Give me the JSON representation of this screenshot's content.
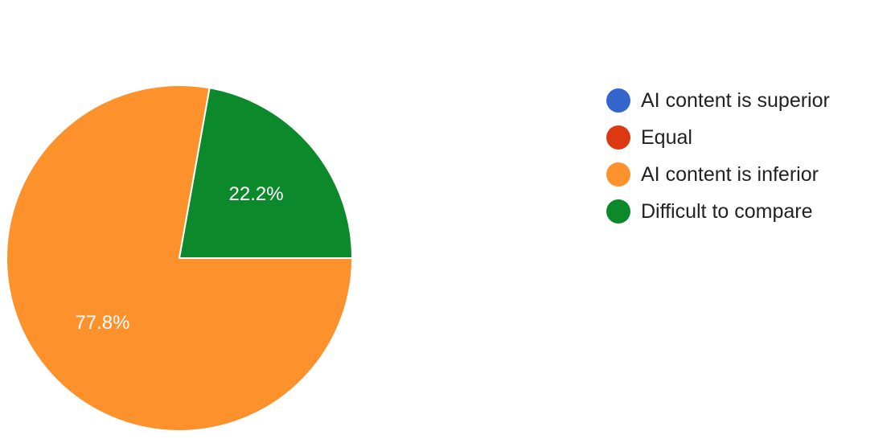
{
  "chart_data": {
    "type": "pie",
    "title": "",
    "legend_position": "right",
    "categories": [
      "AI content is superior",
      "Equal",
      "AI content is inferior",
      "Difficult to compare"
    ],
    "values": [
      0,
      0,
      77.8,
      22.2
    ],
    "value_labels": [
      "",
      "",
      "77.8%",
      "22.2%"
    ],
    "colors": [
      "#3366CC",
      "#DC3912",
      "#FD912B",
      "#0C8A2B"
    ]
  }
}
